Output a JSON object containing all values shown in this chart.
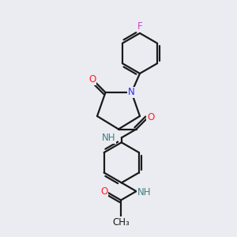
{
  "bg_color": "#ebebf2",
  "bond_color": "#1a1a1a",
  "N_color": "#2929ff",
  "O_color": "#ff2020",
  "F_color": "#cc44cc",
  "H_color": "#3d8080",
  "lw": 1.6,
  "fs": 8.5,
  "xlim": [
    0,
    10
  ],
  "ylim": [
    0,
    10
  ]
}
